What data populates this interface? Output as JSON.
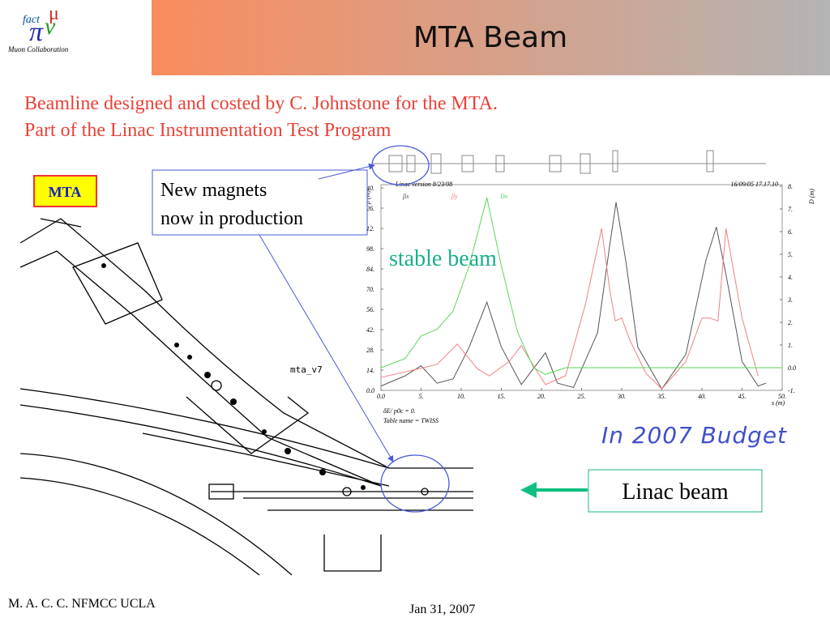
{
  "header": {
    "logo_top": "fact",
    "logo_bottom": "Muon Collaboration",
    "title": "MTA Beam"
  },
  "subtitle": [
    "Beamline designed and costed by C. Johnstone for the MTA.",
    "Part of the Linac Instrumentation Test Program"
  ],
  "labels": {
    "mta": "MTA",
    "magnets": [
      "New magnets",
      "now in production"
    ],
    "stable": "stable beam",
    "budget": "In 2007 Budget",
    "linac": "Linac beam",
    "drawing": "mta_v7"
  },
  "footer": {
    "left": "M. A. C. C.  NFMCC UCLA",
    "date": "Jan 31, 2007"
  },
  "chart_data": {
    "type": "line",
    "title": "Linac version 8/23/08",
    "timestamp": "16/09/05  17.17.10",
    "xlabel": "s (m)",
    "ylabel": "β (m)",
    "y2label": "D (m)",
    "notes": [
      "δE/ p0c = 0.",
      "Table name = TWISS"
    ],
    "xlim": [
      0,
      50
    ],
    "ylim": [
      0,
      140
    ],
    "y2lim": [
      -1,
      8
    ],
    "xticks": [
      {
        "value": 0,
        "label": "0.0"
      },
      {
        "value": 5,
        "label": "5."
      },
      {
        "value": 10,
        "label": "10."
      },
      {
        "value": 15,
        "label": "15."
      },
      {
        "value": 20,
        "label": "20."
      },
      {
        "value": 25,
        "label": "25."
      },
      {
        "value": 30,
        "label": "30."
      },
      {
        "value": 35,
        "label": "35."
      },
      {
        "value": 40,
        "label": "40."
      },
      {
        "value": 45,
        "label": "45."
      },
      {
        "value": 50,
        "label": "50."
      }
    ],
    "yticks": [
      {
        "value": 0,
        "label": "0.0"
      },
      {
        "value": 14,
        "label": "14."
      },
      {
        "value": 28,
        "label": "28."
      },
      {
        "value": 42,
        "label": "42."
      },
      {
        "value": 56,
        "label": "56."
      },
      {
        "value": 70,
        "label": "70."
      },
      {
        "value": 84,
        "label": "84."
      },
      {
        "value": 98,
        "label": "98."
      },
      {
        "value": 112,
        "label": "112."
      },
      {
        "value": 126,
        "label": "126."
      },
      {
        "value": 140,
        "label": "140."
      }
    ],
    "y2ticks": [
      {
        "value": -1,
        "label": "-1."
      },
      {
        "value": 0,
        "label": "0.0"
      },
      {
        "value": 1,
        "label": "1."
      },
      {
        "value": 2,
        "label": "2."
      },
      {
        "value": 3,
        "label": "3."
      },
      {
        "value": 4,
        "label": "4."
      },
      {
        "value": 5,
        "label": "5."
      },
      {
        "value": 6,
        "label": "6."
      },
      {
        "value": 7,
        "label": "7."
      },
      {
        "value": 8,
        "label": "8."
      }
    ],
    "grid": false,
    "series": [
      {
        "name": "βx",
        "color": "#555555",
        "x": [
          0,
          3,
          5,
          7,
          9,
          11,
          13.2,
          15,
          17.5,
          20.5,
          22,
          24,
          27,
          28.5,
          29.3,
          30.5,
          32,
          35,
          38,
          40.5,
          41.8,
          43,
          45,
          47,
          48
        ],
        "values": [
          3,
          10,
          17,
          5,
          8,
          30,
          61,
          30,
          4,
          26,
          5,
          2,
          40,
          100,
          130,
          90,
          30,
          1,
          25,
          90,
          113,
          80,
          20,
          3,
          5
        ]
      },
      {
        "name": "βy",
        "color": "#f08080",
        "x": [
          0,
          4,
          7,
          9.5,
          12,
          13.5,
          16,
          17.5,
          19,
          20.5,
          23,
          25.5,
          27.5,
          28.5,
          29.2,
          30,
          31,
          33,
          35,
          38,
          40,
          41,
          42,
          43,
          45,
          47
        ],
        "values": [
          9,
          14,
          18,
          32,
          15,
          10,
          20,
          31,
          17,
          4,
          10,
          60,
          112,
          70,
          48,
          50,
          35,
          12,
          1,
          20,
          50,
          50,
          48,
          112,
          50,
          10
        ]
      },
      {
        "name": "Dx",
        "color": "#5ad65a",
        "axis": "y2",
        "x": [
          0,
          3,
          5,
          7,
          9,
          11,
          13.2,
          15,
          17,
          19,
          20.5,
          23,
          50
        ],
        "values": [
          0,
          0.4,
          1.4,
          1.7,
          2.5,
          4.5,
          7.5,
          4.5,
          1.6,
          0,
          -0.3,
          0,
          0
        ]
      }
    ]
  }
}
